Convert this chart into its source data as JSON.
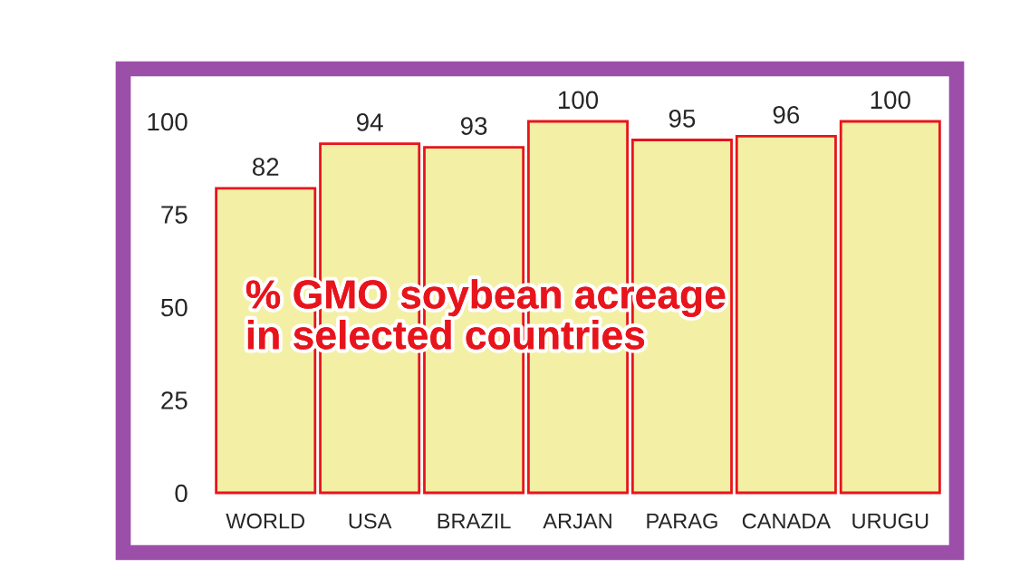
{
  "chart_data": {
    "type": "bar",
    "title": "% GMO soybean acreage\nin selected countries",
    "categories": [
      "WORLD",
      "USA",
      "BRAZIL",
      "ARJAN",
      "PARAG",
      "CANADA",
      "URUGU"
    ],
    "values": [
      82,
      94,
      93,
      100,
      95,
      96,
      100
    ],
    "color": "#f3f0a6",
    "ylim": [
      0,
      100
    ],
    "yticks": [
      0,
      25,
      50,
      75,
      100
    ],
    "grid": false,
    "data_labels": true
  }
}
